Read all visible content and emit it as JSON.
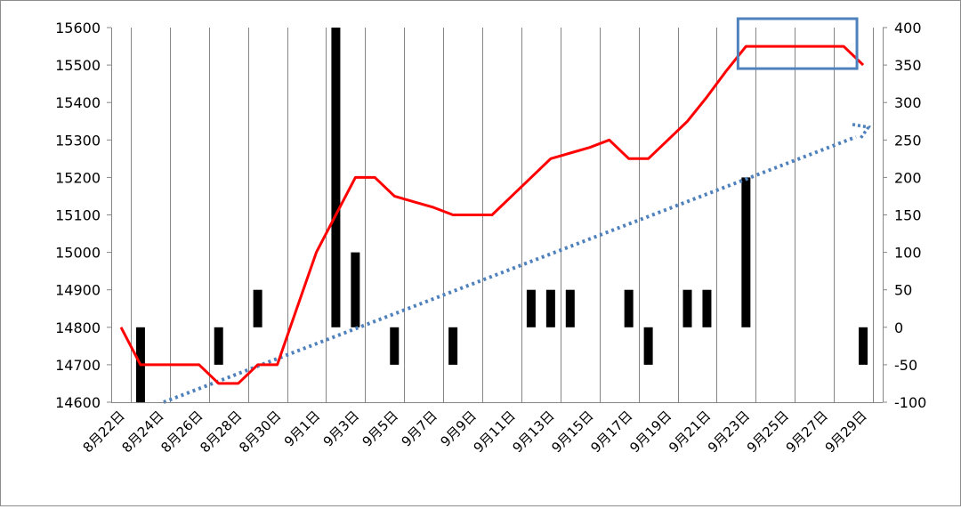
{
  "chart_data": {
    "type": "line",
    "categories": [
      "8月22日",
      "8月23日",
      "8月24日",
      "8月25日",
      "8月26日",
      "8月27日",
      "8月28日",
      "8月29日",
      "8月30日",
      "8月31日",
      "9月1日",
      "9月2日",
      "9月3日",
      "9月4日",
      "9月5日",
      "9月6日",
      "9月7日",
      "9月8日",
      "9月9日",
      "9月10日",
      "9月11日",
      "9月12日",
      "9月13日",
      "9月14日",
      "9月15日",
      "9月16日",
      "9月17日",
      "9月18日",
      "9月19日",
      "9月20日",
      "9月21日",
      "9月22日",
      "9月23日",
      "9月24日",
      "9月25日",
      "9月26日",
      "9月27日",
      "9月28日",
      "9月29日"
    ],
    "x_tick_labels": [
      "8月22日",
      "8月24日",
      "8月26日",
      "8月28日",
      "8月30日",
      "9月1日",
      "9月3日",
      "9月5日",
      "9月7日",
      "9月9日",
      "9月11日",
      "9月13日",
      "9月15日",
      "9月17日",
      "9月19日",
      "9月21日",
      "9月23日",
      "9月25日",
      "9月27日",
      "9月29日"
    ],
    "series": [
      {
        "type": "line",
        "axis": "left",
        "values": [
          14800,
          14700,
          14700,
          14700,
          14700,
          14650,
          14650,
          14700,
          14700,
          14850,
          15000,
          15100,
          15200,
          15200,
          15150,
          15135,
          15120,
          15100,
          15100,
          15100,
          15150,
          15200,
          15250,
          15265,
          15280,
          15300,
          15250,
          15250,
          15300,
          15350,
          15415,
          15485,
          15550,
          15550,
          15550,
          15550,
          15550,
          15550,
          15500
        ]
      },
      {
        "type": "bar",
        "axis": "right",
        "values": [
          0,
          -100,
          0,
          0,
          0,
          -50,
          0,
          50,
          0,
          0,
          0,
          400,
          100,
          0,
          -50,
          0,
          0,
          -50,
          0,
          0,
          0,
          50,
          50,
          50,
          0,
          0,
          50,
          -50,
          0,
          50,
          50,
          0,
          200,
          0,
          0,
          0,
          0,
          0,
          -50
        ]
      },
      {
        "type": "trendline",
        "axis": "left",
        "start": 14600,
        "end": 15320
      }
    ],
    "y_left": {
      "ticks": [
        14600,
        14700,
        14800,
        14900,
        15000,
        15100,
        15200,
        15300,
        15400,
        15500,
        15600
      ],
      "ylim": [
        14600,
        15600
      ]
    },
    "y_right": {
      "ticks": [
        -100,
        -50,
        0,
        50,
        100,
        150,
        200,
        250,
        300,
        350,
        400
      ],
      "ylim": [
        -100,
        400
      ]
    },
    "grid": "vertical",
    "highlight": {
      "x_range": [
        "9月23日",
        "9月29日"
      ],
      "y_range": [
        15500,
        15600
      ]
    },
    "colors": {
      "line": "#ff0000",
      "bar": "#000000",
      "trend": "#4f81bd",
      "highlight": "#4f81bd",
      "grid": "#868686"
    }
  }
}
